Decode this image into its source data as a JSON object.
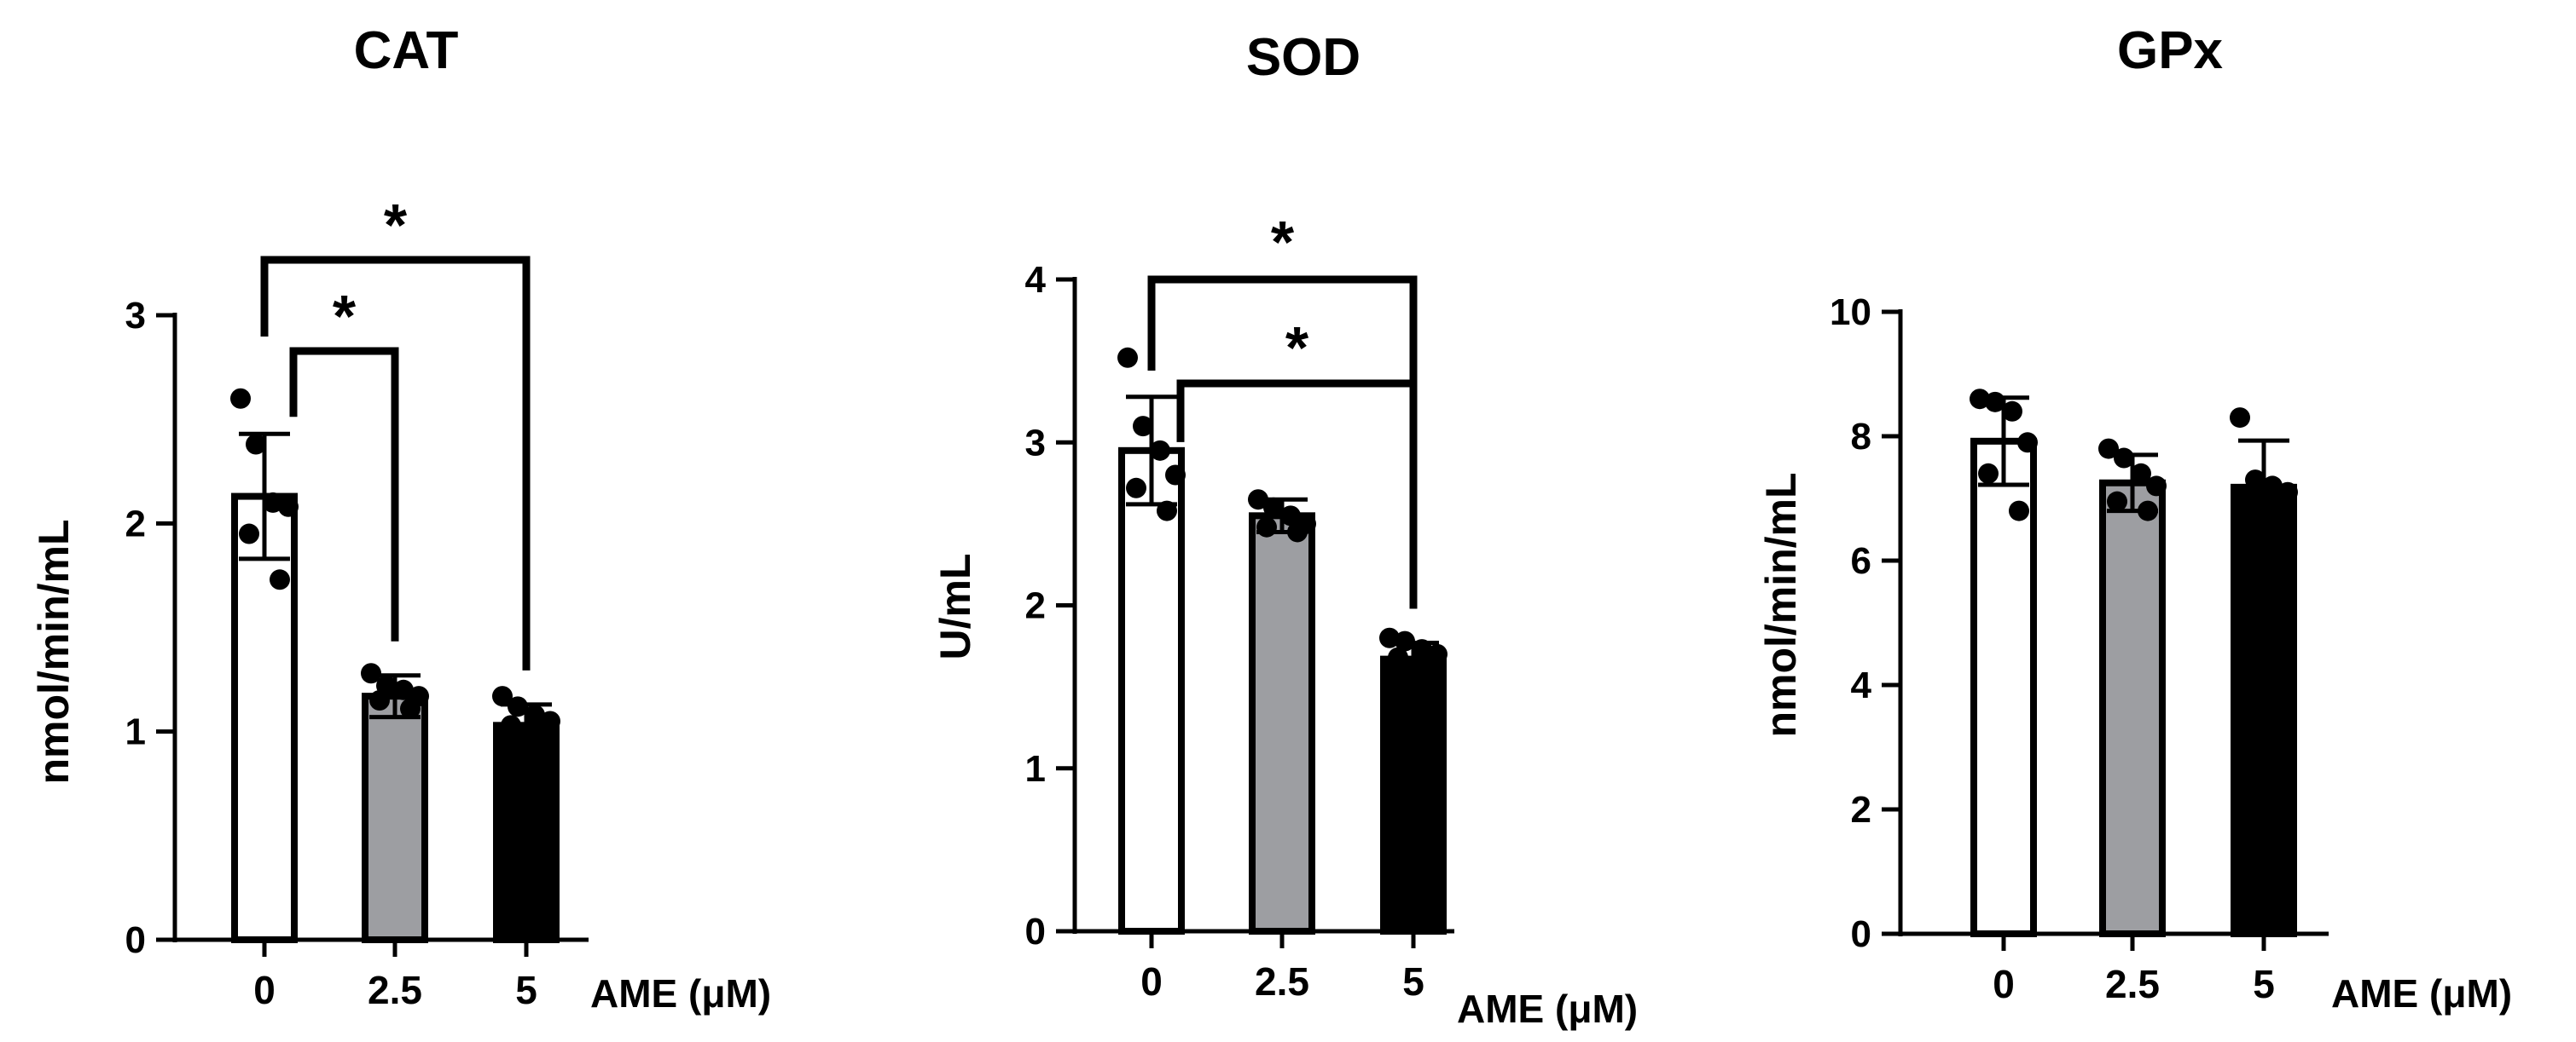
{
  "x_axis_title": "AME (μM)",
  "colors": {
    "bar_0": "#ffffff",
    "bar_2_5": "#9d9ea2",
    "bar_5": "#000000",
    "stroke": "#000000"
  },
  "chart_data": [
    {
      "type": "bar",
      "title": "CAT",
      "ylabel": "nmol/min/mL",
      "xlabel": "AME (μM)",
      "categories": [
        "0",
        "2.5",
        "5"
      ],
      "values": [
        2.13,
        1.17,
        1.03
      ],
      "sd": [
        0.3,
        0.1,
        0.1
      ],
      "points": [
        [
          2.6,
          2.38,
          2.1,
          2.08,
          1.95,
          1.73
        ],
        [
          1.28,
          1.22,
          1.2,
          1.17,
          1.15,
          1.11
        ],
        [
          1.17,
          1.12,
          1.08,
          1.05,
          1.03,
          1.0
        ]
      ],
      "ylim": [
        0,
        3
      ],
      "yticks": [
        0,
        1,
        2,
        3
      ],
      "significance": [
        {
          "from": 0,
          "to": 1,
          "label": "*"
        },
        {
          "from": 0,
          "to": 2,
          "label": "*"
        }
      ]
    },
    {
      "type": "bar",
      "title": "SOD",
      "ylabel": "U/mL",
      "xlabel": "AME (μM)",
      "categories": [
        "0",
        "2.5",
        "5"
      ],
      "values": [
        2.95,
        2.55,
        1.67
      ],
      "sd": [
        0.33,
        0.1,
        0.1
      ],
      "points": [
        [
          3.52,
          3.1,
          2.95,
          2.8,
          2.72,
          2.58
        ],
        [
          2.65,
          2.6,
          2.55,
          2.5,
          2.48,
          2.45
        ],
        [
          1.8,
          1.78,
          1.73,
          1.7,
          1.68,
          1.6
        ]
      ],
      "ylim": [
        0,
        4
      ],
      "yticks": [
        0,
        1,
        2,
        3,
        4
      ],
      "significance": [
        {
          "from": 0,
          "to": 2,
          "label": "*"
        },
        {
          "from": 0,
          "to": 2,
          "label": "*"
        }
      ]
    },
    {
      "type": "bar",
      "title": "GPx",
      "ylabel": "nmol/min/mL",
      "xlabel": "AME (μM)",
      "categories": [
        "0",
        "2.5",
        "5"
      ],
      "values": [
        7.92,
        7.25,
        7.18
      ],
      "sd": [
        0.7,
        0.45,
        0.75
      ],
      "points": [
        [
          8.6,
          8.55,
          8.4,
          7.9,
          7.4,
          6.8
        ],
        [
          7.8,
          7.65,
          7.4,
          7.2,
          6.95,
          6.8
        ],
        [
          8.3,
          7.3,
          7.2,
          7.1,
          7.05,
          7.0
        ]
      ],
      "ylim": [
        0,
        10
      ],
      "yticks": [
        0,
        2,
        4,
        6,
        8,
        10
      ],
      "significance": []
    }
  ]
}
